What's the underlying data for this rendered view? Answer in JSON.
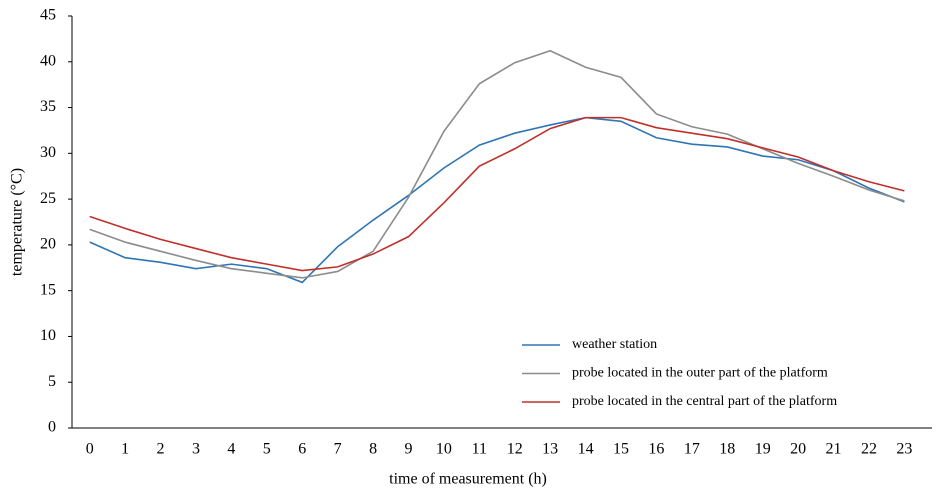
{
  "chart_data": {
    "type": "line",
    "x_label": "time of measurement (h)",
    "y_label": "temperature (°C)",
    "categories": [
      "0",
      "1",
      "2",
      "3",
      "4",
      "5",
      "6",
      "7",
      "8",
      "9",
      "10",
      "11",
      "12",
      "13",
      "14",
      "15",
      "16",
      "17",
      "18",
      "19",
      "20",
      "21",
      "22",
      "23"
    ],
    "series": [
      {
        "name": "weather station",
        "color": "#2e75b6",
        "values": [
          20.3,
          18.6,
          18.1,
          17.4,
          17.9,
          17.4,
          15.9,
          19.8,
          22.7,
          25.4,
          28.4,
          30.9,
          32.2,
          33.1,
          33.9,
          33.5,
          31.7,
          31.0,
          30.7,
          29.7,
          29.3,
          28.1,
          26.2,
          24.7
        ]
      },
      {
        "name": "probe located in the outer part of the platform",
        "color": "#8c8c8c",
        "values": [
          21.7,
          20.3,
          19.3,
          18.3,
          17.4,
          16.9,
          16.4,
          17.1,
          19.3,
          25.2,
          32.4,
          37.6,
          39.9,
          41.2,
          39.4,
          38.3,
          34.3,
          32.9,
          32.1,
          30.5,
          28.9,
          27.5,
          26.0,
          24.8
        ]
      },
      {
        "name": "probe located in the central part of the platform",
        "color": "#c0302b",
        "values": [
          23.1,
          21.8,
          20.6,
          19.6,
          18.6,
          17.9,
          17.2,
          17.6,
          19.0,
          20.9,
          24.6,
          28.6,
          30.5,
          32.7,
          33.9,
          33.9,
          32.8,
          32.2,
          31.6,
          30.6,
          29.6,
          28.1,
          26.9,
          25.9
        ]
      }
    ],
    "ylim": [
      0,
      45
    ],
    "yticks": [
      0,
      5,
      10,
      15,
      20,
      25,
      30,
      35,
      40,
      45
    ],
    "grid": false,
    "legend": "lower right"
  }
}
